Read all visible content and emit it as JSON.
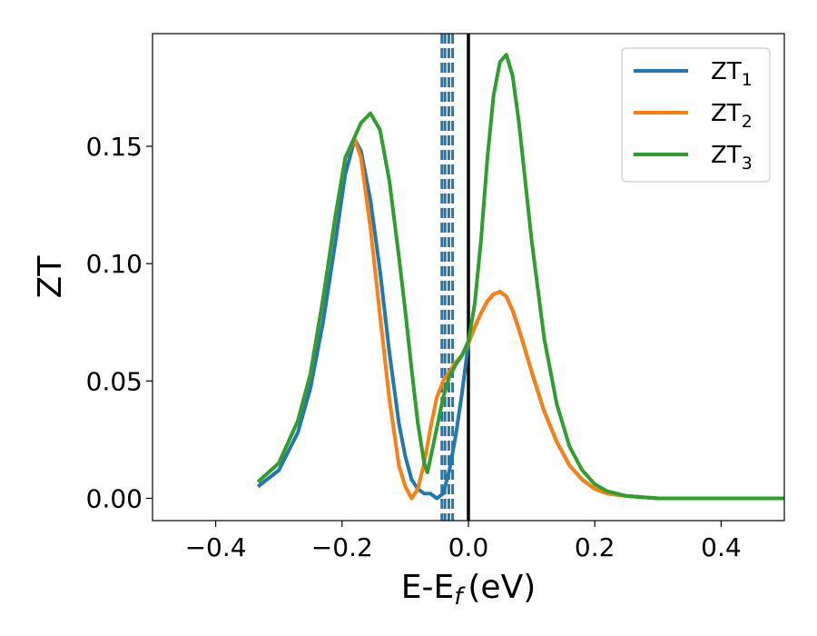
{
  "chart_data": {
    "type": "line",
    "xlabel": "E-E",
    "xlabel_sub": "f",
    "xlabel_unit": "(eV)",
    "ylabel": "ZT",
    "xlim": [
      -0.5,
      0.5
    ],
    "ylim": [
      -0.0095,
      0.198
    ],
    "xticks": [
      -0.4,
      -0.2,
      0.0,
      0.2,
      0.4
    ],
    "xtick_labels": [
      "−0.4",
      "−0.2",
      "0.0",
      "0.2",
      "0.4"
    ],
    "yticks": [
      0.0,
      0.05,
      0.1,
      0.15
    ],
    "ytick_labels": [
      "0.00",
      "0.05",
      "0.10",
      "0.15"
    ],
    "grid": false,
    "legend_position": "top-right",
    "series": [
      {
        "name": "ZT",
        "name_sub": "1",
        "color": "#1f77b4",
        "x": [
          -0.333,
          -0.3,
          -0.27,
          -0.25,
          -0.23,
          -0.21,
          -0.195,
          -0.18,
          -0.17,
          -0.155,
          -0.14,
          -0.125,
          -0.11,
          -0.1,
          -0.09,
          -0.08,
          -0.07,
          -0.06,
          -0.05,
          -0.04,
          -0.03,
          -0.02,
          -0.01,
          0.0,
          0.01,
          0.02,
          0.03,
          0.04,
          0.05,
          0.06,
          0.07,
          0.08,
          0.1,
          0.12,
          0.14,
          0.16,
          0.18,
          0.2,
          0.22,
          0.25,
          0.3,
          0.35,
          0.4,
          0.45,
          0.5
        ],
        "y": [
          0.005,
          0.012,
          0.028,
          0.047,
          0.075,
          0.11,
          0.138,
          0.153,
          0.148,
          0.127,
          0.097,
          0.062,
          0.032,
          0.018,
          0.008,
          0.004,
          0.002,
          0.002,
          0.0,
          0.002,
          0.012,
          0.027,
          0.045,
          0.066,
          0.073,
          0.079,
          0.084,
          0.087,
          0.088,
          0.086,
          0.08,
          0.072,
          0.054,
          0.037,
          0.024,
          0.014,
          0.008,
          0.004,
          0.002,
          0.001,
          0.0,
          0.0,
          0.0,
          0.0,
          0.0
        ]
      },
      {
        "name": "ZT",
        "name_sub": "2",
        "color": "#ff7f0e",
        "x": [
          -0.333,
          -0.3,
          -0.27,
          -0.25,
          -0.23,
          -0.21,
          -0.195,
          -0.18,
          -0.17,
          -0.155,
          -0.14,
          -0.125,
          -0.11,
          -0.1,
          -0.09,
          -0.08,
          -0.07,
          -0.06,
          -0.05,
          -0.04,
          -0.03,
          -0.02,
          -0.01,
          0.0,
          0.01,
          0.02,
          0.03,
          0.04,
          0.05,
          0.06,
          0.07,
          0.08,
          0.1,
          0.12,
          0.14,
          0.16,
          0.18,
          0.2,
          0.22,
          0.25,
          0.3,
          0.35,
          0.4,
          0.45,
          0.5
        ],
        "y": [
          0.007,
          0.015,
          0.033,
          0.053,
          0.085,
          0.121,
          0.145,
          0.153,
          0.145,
          0.115,
          0.078,
          0.042,
          0.014,
          0.005,
          0.0,
          0.004,
          0.015,
          0.03,
          0.043,
          0.05,
          0.054,
          0.058,
          0.061,
          0.066,
          0.073,
          0.079,
          0.084,
          0.087,
          0.088,
          0.086,
          0.08,
          0.072,
          0.054,
          0.037,
          0.024,
          0.014,
          0.008,
          0.004,
          0.002,
          0.001,
          0.0,
          0.0,
          0.0,
          0.0,
          0.0
        ]
      },
      {
        "name": "ZT",
        "name_sub": "3",
        "color": "#2ca02c",
        "x": [
          -0.333,
          -0.3,
          -0.27,
          -0.25,
          -0.23,
          -0.21,
          -0.195,
          -0.18,
          -0.17,
          -0.155,
          -0.14,
          -0.125,
          -0.11,
          -0.1,
          -0.09,
          -0.08,
          -0.07,
          -0.065,
          -0.06,
          -0.05,
          -0.04,
          -0.03,
          -0.02,
          -0.01,
          0.0,
          0.01,
          0.02,
          0.03,
          0.04,
          0.05,
          0.06,
          0.07,
          0.08,
          0.1,
          0.12,
          0.14,
          0.16,
          0.18,
          0.2,
          0.22,
          0.25,
          0.3,
          0.35,
          0.4,
          0.45,
          0.5
        ],
        "y": [
          0.007,
          0.015,
          0.033,
          0.053,
          0.085,
          0.121,
          0.145,
          0.154,
          0.16,
          0.164,
          0.157,
          0.135,
          0.103,
          0.08,
          0.055,
          0.032,
          0.015,
          0.011,
          0.017,
          0.03,
          0.043,
          0.052,
          0.057,
          0.061,
          0.067,
          0.083,
          0.11,
          0.145,
          0.172,
          0.186,
          0.189,
          0.18,
          0.16,
          0.11,
          0.068,
          0.04,
          0.022,
          0.012,
          0.006,
          0.003,
          0.001,
          0.0,
          0.0,
          0.0,
          0.0,
          0.0
        ]
      }
    ],
    "vlines": [
      {
        "x": 0.0,
        "color": "#000000",
        "style": "solid"
      },
      {
        "x": -0.042,
        "color": "#1f77b4",
        "style": "dashed"
      },
      {
        "x": -0.037,
        "color": "#1f77b4",
        "style": "dashed"
      },
      {
        "x": -0.031,
        "color": "#1f77b4",
        "style": "dashed"
      },
      {
        "x": -0.025,
        "color": "#1f77b4",
        "style": "dashed"
      }
    ]
  }
}
